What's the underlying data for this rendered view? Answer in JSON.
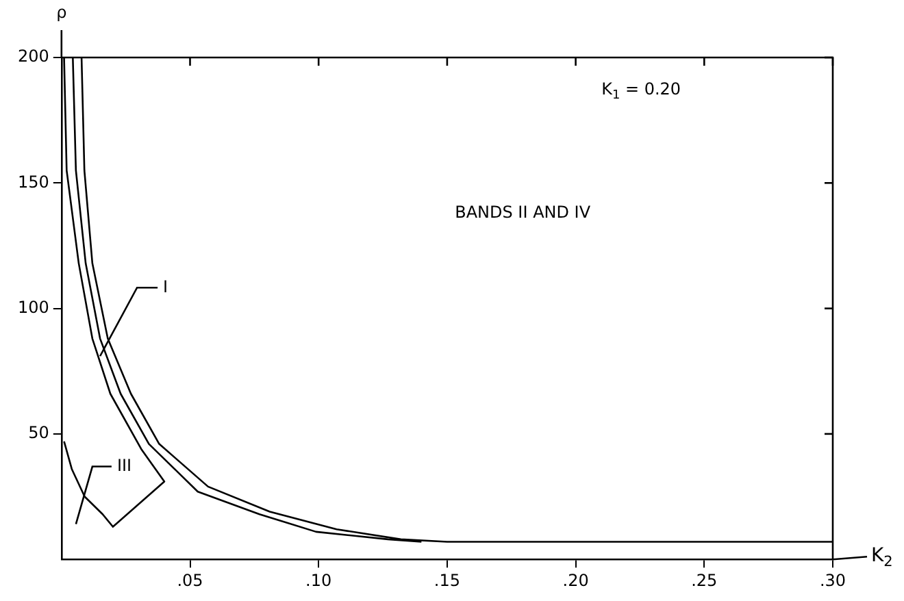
{
  "chart_data": {
    "type": "line",
    "xlabel": "K$_{2}$",
    "ylabel": "ρ",
    "xlim": [
      0,
      0.3
    ],
    "ylim": [
      0,
      200
    ],
    "xticks": [
      {
        "value": 0.05,
        "label": ".05"
      },
      {
        "value": 0.1,
        "label": ".10"
      },
      {
        "value": 0.15,
        "label": ".15"
      },
      {
        "value": 0.2,
        "label": ".20"
      },
      {
        "value": 0.25,
        "label": ".25"
      },
      {
        "value": 0.3,
        "label": ".30"
      }
    ],
    "yticks": [
      50,
      100,
      150,
      200
    ],
    "grid": false,
    "legend": false,
    "marker": "none",
    "line_style": "solid",
    "series": [
      {
        "color": "#000000",
        "x": [
          0.001,
          0.002,
          0.0067,
          0.012,
          0.019,
          0.031,
          0.04,
          0.02,
          0.016,
          0.009,
          0.004,
          0.001
        ],
        "values": [
          200,
          155,
          118,
          88,
          66,
          44,
          31,
          13,
          18,
          25,
          36,
          47
        ]
      },
      {
        "color": "#000000",
        "x": [
          0.0044,
          0.0056,
          0.0094,
          0.015,
          0.023,
          0.034,
          0.053,
          0.077,
          0.099,
          0.127,
          0.14
        ],
        "values": [
          200,
          155,
          118,
          88,
          66,
          46,
          27,
          18,
          11,
          8,
          7
        ]
      },
      {
        "color": "#000000",
        "x": [
          0.0078,
          0.0089,
          0.012,
          0.018,
          0.027,
          0.038,
          0.057,
          0.081,
          0.107,
          0.132,
          0.15,
          0.3
        ],
        "values": [
          200,
          155,
          118,
          88,
          66,
          46,
          29,
          19,
          12,
          8,
          7,
          7
        ]
      }
    ],
    "annotations": [
      "K$_{1}$ = 0.20",
      "BANDS II AND IV",
      {
        "text": "I",
        "x": 0.015,
        "y": 81
      },
      "III"
    ]
  }
}
